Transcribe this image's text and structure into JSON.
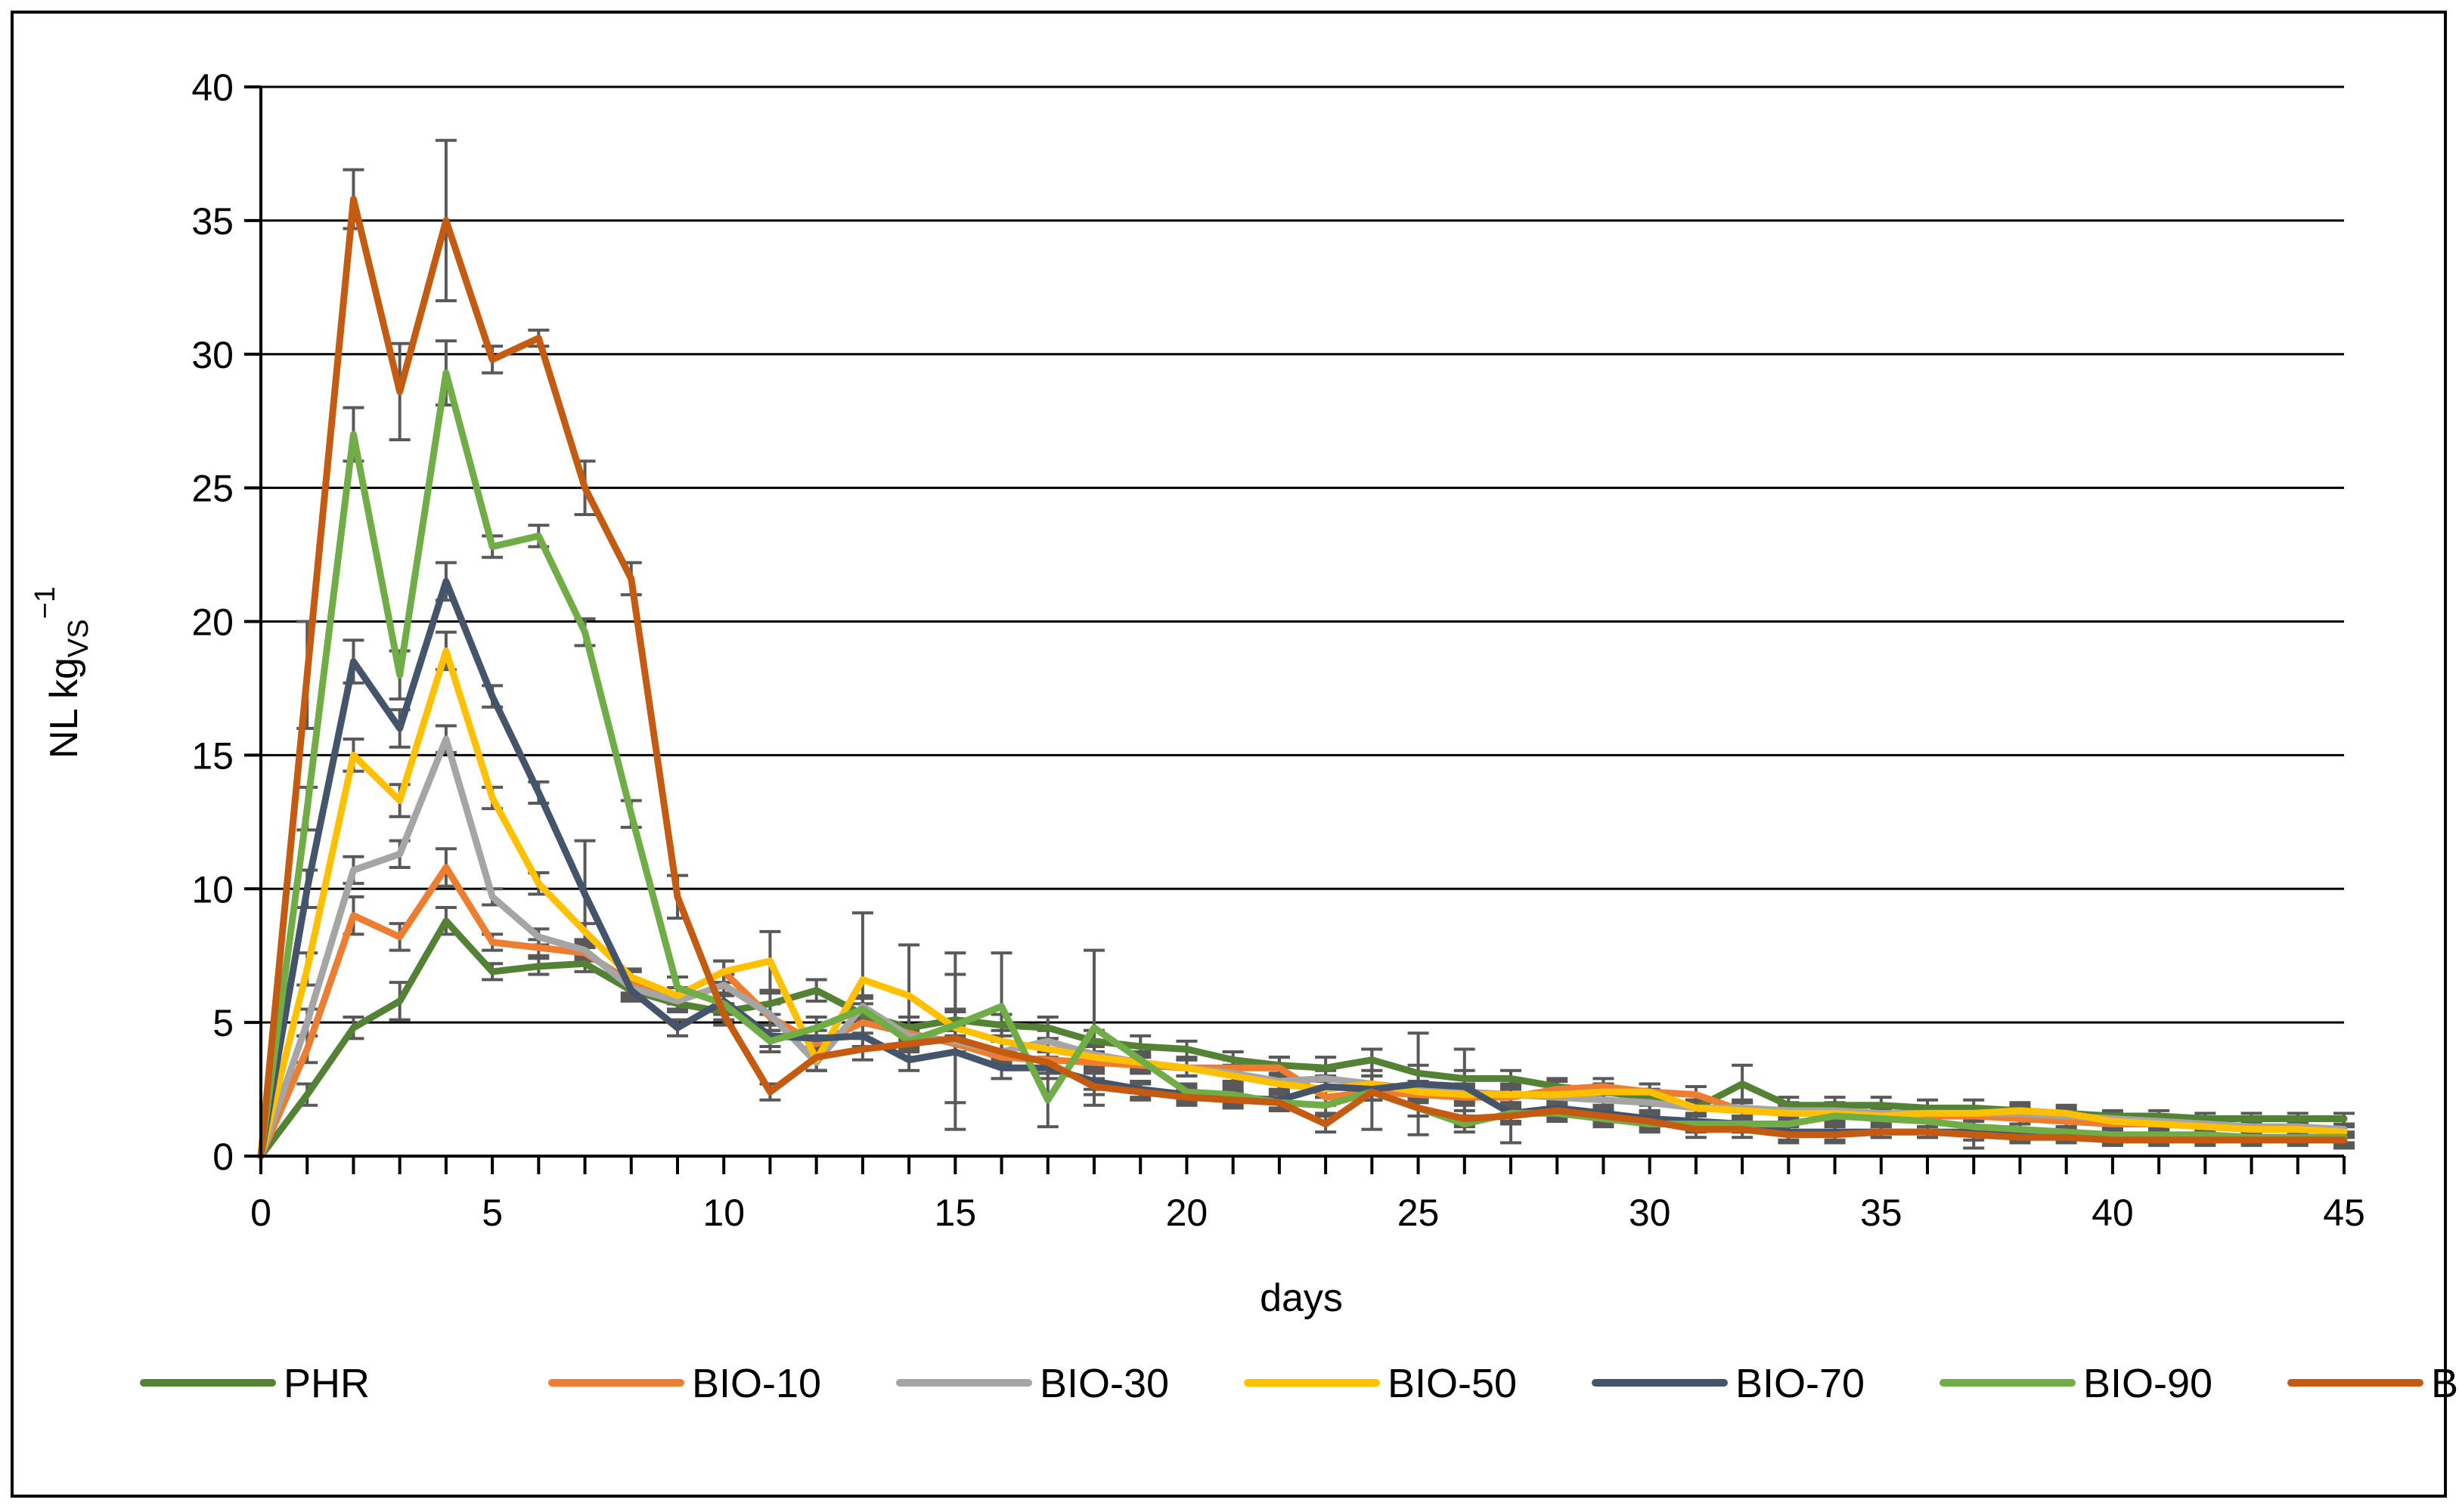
{
  "chart_data": {
    "type": "line",
    "title": "",
    "xlabel": "days",
    "ylabel": {
      "main": "NL kg",
      "subscript": "VS",
      "superscript": "−1"
    },
    "xlim": [
      0,
      45
    ],
    "ylim": [
      0,
      40
    ],
    "x_ticks": [
      0,
      5,
      10,
      15,
      20,
      25,
      30,
      35,
      40,
      45
    ],
    "x_tick_labels": [
      "0",
      "5",
      "10",
      "15",
      "20",
      "25",
      "30",
      "35",
      "40",
      "45"
    ],
    "y_ticks": [
      0,
      5,
      10,
      15,
      20,
      25,
      30,
      35,
      40
    ],
    "y_tick_labels": [
      "0",
      "5",
      "10",
      "15",
      "20",
      "25",
      "30",
      "35",
      "40"
    ],
    "grid": "horizontal",
    "legend_position": "bottom",
    "x": [
      0,
      1,
      2,
      3,
      4,
      5,
      6,
      7,
      8,
      9,
      10,
      11,
      12,
      13,
      14,
      15,
      16,
      17,
      18,
      19,
      20,
      21,
      22,
      23,
      24,
      25,
      26,
      27,
      28,
      29,
      30,
      31,
      32,
      33,
      34,
      35,
      36,
      37,
      38,
      39,
      40,
      41,
      42,
      43,
      44,
      45
    ],
    "series": [
      {
        "name": "PHR",
        "color": "#548235",
        "values": [
          0,
          2.3,
          4.8,
          5.8,
          8.8,
          6.9,
          7.1,
          7.2,
          6.2,
          5.7,
          5.4,
          5.7,
          6.2,
          5.3,
          4.8,
          5.1,
          4.9,
          4.8,
          4.3,
          4.1,
          4.0,
          3.6,
          3.4,
          3.3,
          3.6,
          3.1,
          2.9,
          2.9,
          2.6,
          2.4,
          2.2,
          1.8,
          2.7,
          1.9,
          1.9,
          1.9,
          1.8,
          1.8,
          1.7,
          1.6,
          1.5,
          1.5,
          1.4,
          1.4,
          1.4,
          1.4
        ],
        "error": [
          0,
          0.4,
          0.4,
          0.7,
          0.5,
          0.3,
          0.3,
          0.3,
          0.3,
          0.3,
          0.3,
          0.4,
          0.4,
          0.4,
          0.4,
          0.4,
          0.4,
          0.4,
          0.4,
          0.4,
          0.3,
          0.3,
          0.3,
          0.4,
          0.4,
          0.3,
          0.3,
          0.3,
          0.3,
          0.3,
          0.3,
          0.3,
          0.7,
          0.3,
          0.3,
          0.3,
          0.3,
          0.3,
          0.3,
          0.3,
          0.2,
          0.2,
          0.2,
          0.2,
          0.2,
          0.2
        ]
      },
      {
        "name": "BIO-10",
        "color": "#ED7D31",
        "values": [
          0,
          4.0,
          9.0,
          8.2,
          10.8,
          8.0,
          7.8,
          7.6,
          6.5,
          6.0,
          6.9,
          5.2,
          4.2,
          5.0,
          4.6,
          4.2,
          3.7,
          3.6,
          3.5,
          3.4,
          3.3,
          3.3,
          3.3,
          2.2,
          2.4,
          2.3,
          2.2,
          2.2,
          2.5,
          2.6,
          2.4,
          2.3,
          1.7,
          1.6,
          1.6,
          1.5,
          1.5,
          1.5,
          1.4,
          1.3,
          1.2,
          1.2,
          1.1,
          1.0,
          1.0,
          1.0
        ],
        "error": [
          0,
          0.5,
          0.7,
          0.5,
          0.7,
          0.3,
          0.3,
          0.3,
          0.4,
          0.3,
          0.4,
          0.5,
          0.3,
          0.4,
          0.3,
          0.3,
          0.3,
          0.3,
          0.3,
          0.3,
          0.3,
          0.3,
          0.4,
          0.3,
          0.3,
          0.3,
          0.3,
          0.3,
          0.3,
          0.3,
          0.3,
          0.3,
          0.3,
          0.3,
          0.3,
          0.2,
          0.2,
          0.2,
          0.2,
          0.2,
          0.2,
          0.2,
          0.2,
          0.2,
          0.2,
          0.2
        ]
      },
      {
        "name": "BIO-30",
        "color": "#A5A5A5",
        "values": [
          0,
          5.0,
          10.7,
          11.3,
          15.6,
          9.7,
          8.2,
          7.7,
          6.3,
          5.8,
          6.4,
          5.3,
          3.5,
          5.6,
          4.5,
          4.3,
          3.9,
          4.3,
          3.8,
          3.5,
          3.3,
          3.1,
          2.8,
          2.9,
          2.7,
          2.5,
          2.4,
          2.3,
          2.2,
          2.1,
          2.0,
          1.8,
          1.8,
          1.7,
          1.7,
          1.6,
          1.6,
          1.6,
          1.6,
          1.5,
          1.4,
          1.3,
          1.2,
          1.1,
          1.1,
          1.0
        ],
        "error": [
          0,
          0.5,
          0.5,
          0.5,
          0.5,
          0.3,
          0.3,
          0.3,
          0.3,
          0.3,
          0.4,
          0.4,
          0.3,
          0.4,
          0.4,
          0.4,
          0.4,
          0.4,
          0.4,
          0.3,
          0.3,
          0.3,
          0.3,
          0.3,
          0.3,
          0.3,
          0.3,
          0.3,
          0.3,
          0.3,
          0.3,
          0.3,
          0.3,
          0.3,
          0.3,
          0.2,
          0.2,
          0.2,
          0.2,
          0.2,
          0.2,
          0.2,
          0.2,
          0.2,
          0.2,
          0.2
        ]
      },
      {
        "name": "BIO-50",
        "color": "#FFC000",
        "values": [
          0,
          7.0,
          15.0,
          13.3,
          18.9,
          13.4,
          10.2,
          8.4,
          6.7,
          6.0,
          6.9,
          7.3,
          3.6,
          6.6,
          6.0,
          4.8,
          4.3,
          4.0,
          3.7,
          3.5,
          3.3,
          3.0,
          2.7,
          2.5,
          2.7,
          2.4,
          2.3,
          2.3,
          2.3,
          2.4,
          2.4,
          1.8,
          1.7,
          1.6,
          1.6,
          1.5,
          1.6,
          1.6,
          1.7,
          1.6,
          1.3,
          1.2,
          1.1,
          1.0,
          1.0,
          0.9
        ],
        "error": [
          0,
          0.6,
          0.6,
          0.6,
          0.7,
          0.4,
          0.4,
          0.3,
          0.3,
          0.3,
          0.4,
          1.1,
          0.4,
          2.5,
          1.9,
          2.8,
          0.4,
          0.4,
          0.4,
          0.3,
          0.3,
          0.3,
          0.3,
          0.3,
          0.3,
          0.3,
          0.3,
          0.3,
          0.3,
          0.3,
          0.3,
          0.3,
          0.3,
          0.3,
          0.3,
          0.2,
          0.2,
          0.2,
          0.2,
          0.2,
          0.2,
          0.2,
          0.2,
          0.2,
          0.2,
          0.2
        ]
      },
      {
        "name": "BIO-70",
        "color": "#44546A",
        "values": [
          0,
          10.0,
          18.5,
          16.0,
          21.5,
          17.2,
          13.6,
          9.8,
          6.2,
          4.8,
          5.8,
          4.5,
          4.4,
          4.5,
          3.6,
          3.9,
          3.3,
          3.3,
          2.8,
          2.5,
          2.3,
          2.2,
          2.1,
          2.6,
          2.5,
          2.7,
          2.6,
          1.6,
          1.8,
          1.6,
          1.4,
          1.3,
          1.2,
          0.9,
          0.9,
          0.9,
          0.9,
          0.9,
          0.8,
          0.8,
          0.7,
          0.7,
          0.7,
          0.7,
          0.7,
          0.7
        ],
        "error": [
          0,
          0.7,
          0.8,
          0.7,
          0.7,
          0.4,
          0.4,
          2.0,
          0.4,
          0.3,
          0.3,
          0.4,
          0.3,
          0.4,
          0.4,
          2.9,
          0.4,
          0.4,
          0.3,
          0.3,
          0.3,
          0.3,
          0.3,
          0.4,
          1.5,
          1.9,
          1.4,
          1.1,
          0.3,
          0.3,
          0.3,
          0.3,
          0.3,
          0.3,
          0.3,
          0.2,
          0.2,
          0.6,
          0.2,
          0.2,
          0.2,
          0.2,
          0.2,
          0.2,
          0.2,
          0.4
        ]
      },
      {
        "name": "BIO-90",
        "color": "#70AD47",
        "values": [
          0,
          13.0,
          27.0,
          18.0,
          29.3,
          22.8,
          23.2,
          19.6,
          12.8,
          6.3,
          5.7,
          4.3,
          4.8,
          5.5,
          4.3,
          4.9,
          5.6,
          2.1,
          4.8,
          3.6,
          2.4,
          2.3,
          2.0,
          1.9,
          2.4,
          1.8,
          1.2,
          1.6,
          1.6,
          1.4,
          1.2,
          1.2,
          1.2,
          1.2,
          1.5,
          1.4,
          1.3,
          1.1,
          1.0,
          0.9,
          0.8,
          0.8,
          0.8,
          0.7,
          0.7,
          0.7
        ],
        "error": [
          0,
          0.8,
          1.0,
          0.9,
          1.2,
          0.4,
          0.4,
          0.5,
          0.5,
          0.4,
          0.4,
          0.4,
          0.4,
          0.4,
          0.4,
          0.5,
          2.0,
          1.0,
          2.9,
          0.3,
          0.3,
          0.3,
          0.3,
          0.3,
          0.3,
          0.3,
          0.3,
          0.3,
          0.3,
          0.3,
          0.3,
          0.3,
          0.3,
          0.3,
          0.3,
          0.2,
          0.2,
          0.2,
          0.2,
          0.2,
          0.2,
          0.2,
          0.2,
          0.2,
          0.2,
          0.2
        ]
      },
      {
        "name": "BIO",
        "color": "#C55A11",
        "values": [
          0,
          18.0,
          35.8,
          28.6,
          35.0,
          29.8,
          30.6,
          25.0,
          21.6,
          9.7,
          5.3,
          2.4,
          3.7,
          4.0,
          4.2,
          4.4,
          3.9,
          3.5,
          2.6,
          2.4,
          2.2,
          2.1,
          2.0,
          1.2,
          2.4,
          1.8,
          1.4,
          1.5,
          1.7,
          1.5,
          1.3,
          1.0,
          1.0,
          0.8,
          0.8,
          0.9,
          0.9,
          0.8,
          0.7,
          0.7,
          0.6,
          0.6,
          0.6,
          0.6,
          0.6,
          0.6
        ],
        "error": [
          0,
          2.0,
          1.1,
          1.8,
          3.0,
          0.5,
          0.3,
          1.0,
          0.6,
          0.8,
          0.4,
          0.3,
          0.5,
          0.4,
          0.5,
          0.5,
          0.4,
          0.4,
          0.3,
          0.3,
          0.3,
          0.3,
          0.3,
          0.3,
          0.3,
          0.3,
          0.3,
          0.3,
          0.3,
          0.3,
          0.3,
          0.3,
          0.3,
          0.3,
          0.3,
          0.2,
          0.2,
          0.2,
          0.2,
          0.2,
          0.2,
          0.2,
          0.2,
          0.2,
          0.2,
          0.2
        ]
      }
    ]
  }
}
